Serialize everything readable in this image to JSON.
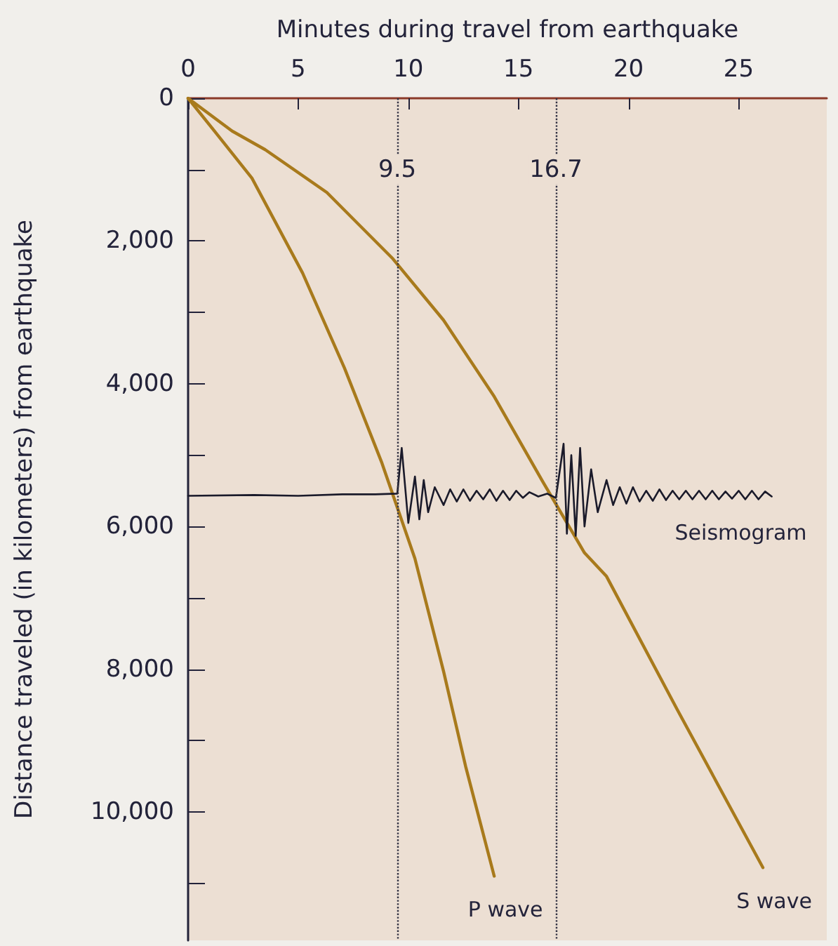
{
  "chart_data": {
    "type": "line",
    "xlabel": "Minutes during travel from earthquake",
    "ylabel": "Distance traveled (in kilometers) from earthquake",
    "xlim": [
      0,
      29
    ],
    "xticks": [
      0,
      5,
      10,
      15,
      20,
      25
    ],
    "ylim": [
      11800,
      0
    ],
    "yticks": [
      {
        "value": 0,
        "label": "0"
      },
      {
        "value": 1000,
        "label": null
      },
      {
        "value": 2000,
        "label": "2,000"
      },
      {
        "value": 3000,
        "label": null
      },
      {
        "value": 4000,
        "label": "4,000"
      },
      {
        "value": 5000,
        "label": null
      },
      {
        "value": 6000,
        "label": "6,000"
      },
      {
        "value": 7000,
        "label": null
      },
      {
        "value": 8000,
        "label": "8,000"
      },
      {
        "value": 9000,
        "label": null
      },
      {
        "value": 10000,
        "label": "10,000"
      },
      {
        "value": 11000,
        "label": null
      }
    ],
    "grid": false,
    "legend": false,
    "marker": "none",
    "line_style": "solid",
    "ref_lines": [
      {
        "axis": "x",
        "value": 9.5,
        "label": "9.5",
        "color": "#333344",
        "line_style": "dotted"
      },
      {
        "axis": "x",
        "value": 16.7,
        "label": "16.7",
        "color": "#333344",
        "line_style": "dotted"
      }
    ],
    "series": [
      {
        "name": "P wave",
        "color": "#a87a1c",
        "x": [
          0,
          1.2,
          2.9,
          5.2,
          7.1,
          8.8,
          10.3,
          11.6,
          12.6,
          13.9
        ],
        "values": [
          0,
          460,
          1120,
          2450,
          3780,
          5110,
          6450,
          8030,
          9360,
          10900
        ]
      },
      {
        "name": "S wave",
        "color": "#a87a1c",
        "x": [
          0,
          2.0,
          3.5,
          6.3,
          9.3,
          11.6,
          13.9,
          16.1,
          18.0,
          19.0,
          22.2,
          26.1
        ],
        "values": [
          0,
          460,
          720,
          1320,
          2250,
          3110,
          4180,
          5370,
          6370,
          6700,
          8560,
          10780
        ]
      },
      {
        "name": "Seismogram",
        "color": "#1a1a2a",
        "x": [
          0,
          3,
          5,
          7,
          8.5,
          9.5,
          9.7,
          10.0,
          10.3,
          10.5,
          10.7,
          10.9,
          11.2,
          11.6,
          11.9,
          12.2,
          12.5,
          12.8,
          13.1,
          13.4,
          13.7,
          14.0,
          14.3,
          14.6,
          14.9,
          15.2,
          15.5,
          15.9,
          16.3,
          16.7,
          17.05,
          17.2,
          17.4,
          17.6,
          17.8,
          18.0,
          18.3,
          18.6,
          19.0,
          19.3,
          19.6,
          19.9,
          20.2,
          20.5,
          20.8,
          21.1,
          21.4,
          21.7,
          22.0,
          22.3,
          22.6,
          22.9,
          23.2,
          23.5,
          23.8,
          24.1,
          24.4,
          24.7,
          25.0,
          25.3,
          25.6,
          25.9,
          26.2,
          26.5
        ],
        "values": [
          5570,
          5560,
          5570,
          5550,
          5550,
          5540,
          4900,
          5950,
          5300,
          5900,
          5350,
          5800,
          5450,
          5700,
          5480,
          5650,
          5480,
          5640,
          5500,
          5620,
          5480,
          5640,
          5500,
          5630,
          5500,
          5600,
          5520,
          5580,
          5540,
          5600,
          4840,
          6100,
          5000,
          6130,
          4900,
          6000,
          5200,
          5800,
          5350,
          5700,
          5450,
          5680,
          5450,
          5650,
          5500,
          5640,
          5480,
          5630,
          5500,
          5620,
          5500,
          5620,
          5500,
          5620,
          5500,
          5620,
          5510,
          5610,
          5500,
          5620,
          5500,
          5620,
          5510,
          5580
        ]
      }
    ]
  }
}
